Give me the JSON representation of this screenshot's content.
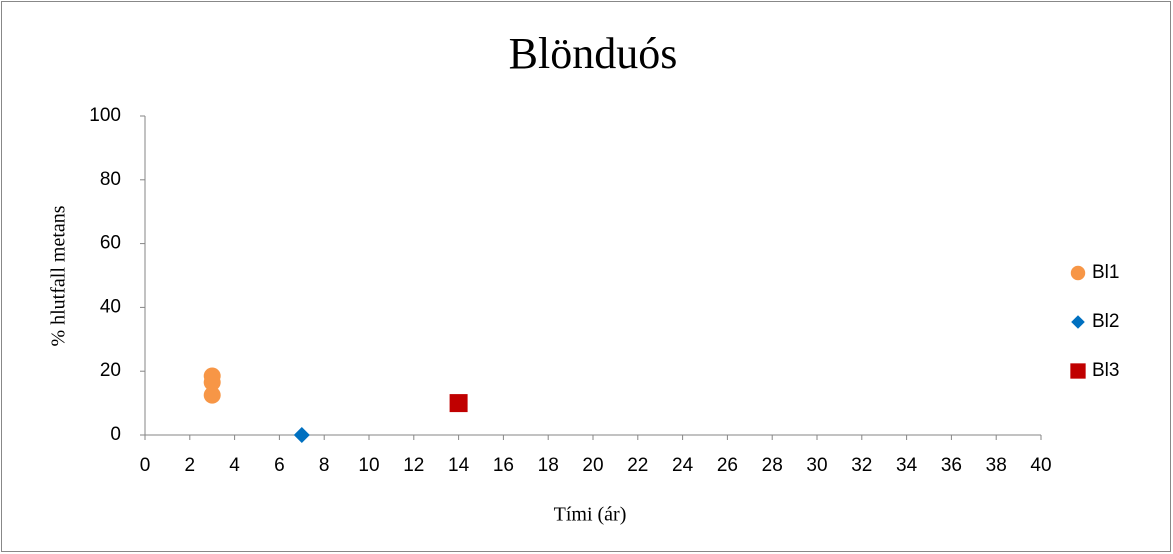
{
  "chart_data": {
    "type": "scatter",
    "title": "Blönduós",
    "x_label": "Tími (ár)",
    "y_label": "% hlutfall metans",
    "xlim": [
      0,
      40
    ],
    "xticks": [
      0,
      2,
      4,
      6,
      8,
      10,
      12,
      14,
      16,
      18,
      20,
      22,
      24,
      26,
      28,
      30,
      32,
      34,
      36,
      38,
      40
    ],
    "ylim": [
      0,
      100
    ],
    "yticks": [
      0,
      20,
      40,
      60,
      80,
      100
    ],
    "grid": false,
    "legend": "right",
    "series": [
      {
        "name": "Bl1",
        "color": "#f79646",
        "marker": "circle",
        "x": [
          3,
          3,
          3
        ],
        "values": [
          18.5,
          16.5,
          12.5
        ]
      },
      {
        "name": "Bl2",
        "color": "#0070c0",
        "marker": "diamond",
        "x": [
          7
        ],
        "values": [
          0
        ]
      },
      {
        "name": "Bl3",
        "color": "#c00000",
        "marker": "square",
        "x": [
          14
        ],
        "values": [
          10
        ]
      }
    ]
  }
}
